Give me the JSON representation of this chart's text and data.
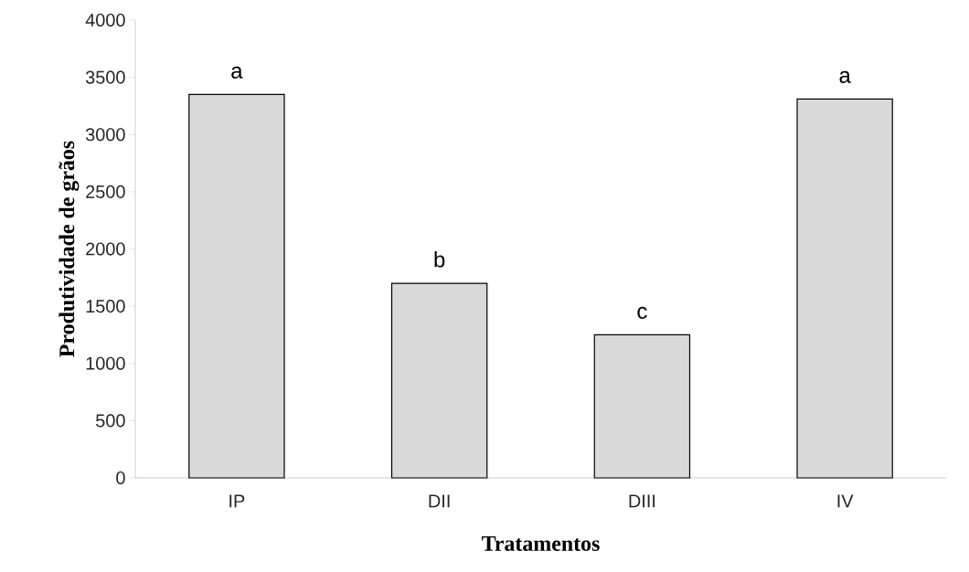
{
  "chart_data": {
    "type": "bar",
    "xlabel": "Tratamentos",
    "ylabel": "Produtividade de grãos",
    "categories": [
      "IP",
      "DII",
      "DIII",
      "IV"
    ],
    "values": [
      3350,
      1700,
      1250,
      3310
    ],
    "color": "#d9d9d9",
    "ylim": [
      0,
      4000
    ],
    "yticks": [
      0,
      500,
      1000,
      1500,
      2000,
      2500,
      3000,
      3500,
      4000
    ],
    "annotations": [
      {
        "text": "a",
        "x": "IP",
        "y": 3350
      },
      {
        "text": "b",
        "x": "DII",
        "y": 1700
      },
      {
        "text": "c",
        "x": "DIII",
        "y": 1250
      },
      {
        "text": "a",
        "x": "IV",
        "y": 3310
      }
    ]
  }
}
